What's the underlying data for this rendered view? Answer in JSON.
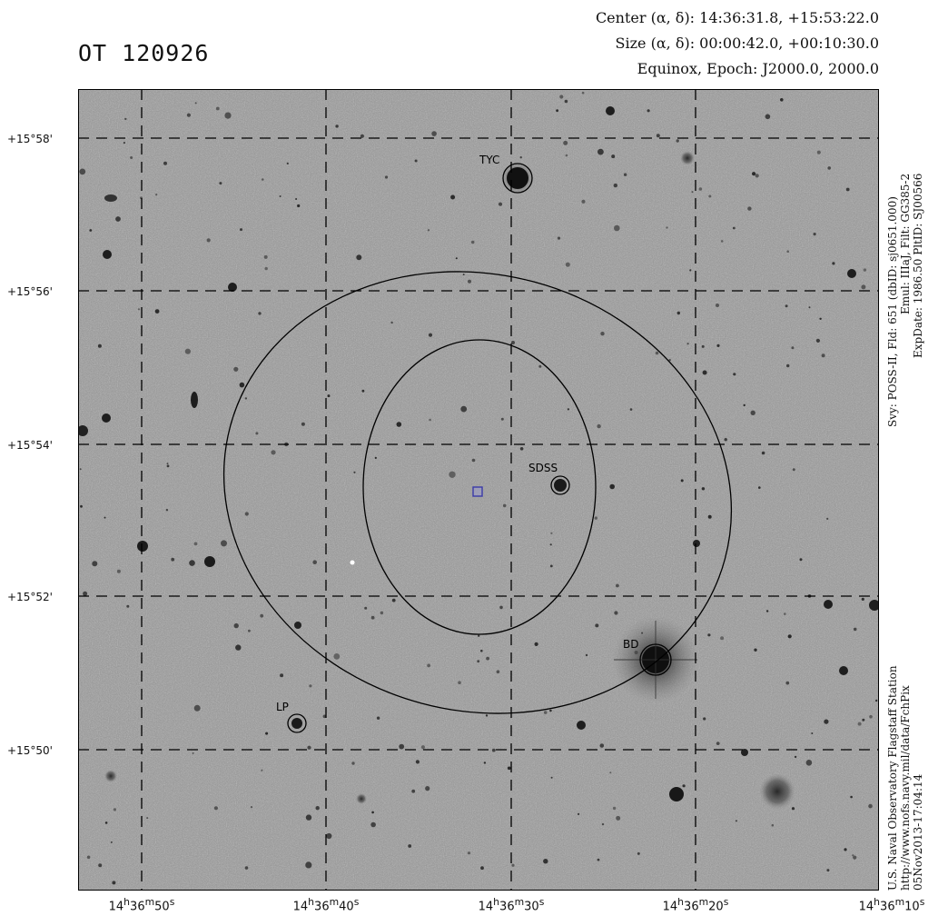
{
  "title": "OT 120926",
  "header": {
    "center_label": "Center (α, δ):",
    "center_value": "14:36:31.8, +15:53:22.0",
    "size_label": "Size (α, δ):",
    "size_value": "00:00:42.0, +00:10:30.0",
    "equinox_label": "Equinox, Epoch:",
    "equinox_value": "J2000.0, 2000.0"
  },
  "y_ticks": [
    "+15°58'",
    "+15°56'",
    "+15°54'",
    "+15°52'",
    "+15°50'"
  ],
  "x_ticks": [
    "14h36m50s",
    "14h36m40s",
    "14h36m30s",
    "14h36m20s",
    "14h36m10s"
  ],
  "x_ticks_display": [
    {
      "h": "14",
      "m": "36",
      "s": "50"
    },
    {
      "h": "14",
      "m": "36",
      "s": "40"
    },
    {
      "h": "14",
      "m": "36",
      "s": "30"
    },
    {
      "h": "14",
      "m": "36",
      "s": "20"
    },
    {
      "h": "14",
      "m": "36",
      "s": "10"
    }
  ],
  "survey_info": {
    "line1": "Svy: POSS-II, Fld: 651 (dbID: sj0651.000)",
    "line2": "Emul: IIIaJ, Filt: GG385-2",
    "line3": "ExpDate: 1986.50 PltID: SJ00566"
  },
  "credit": {
    "line1": "U.S. Naval Observatory Flagstaff Station",
    "line2": "http://www.nofs.navy.mil/data/FchPix",
    "line3": "05Nov2013-17:04:14"
  },
  "labels": {
    "tyc": "TYC",
    "sdss": "SDSS",
    "bd": "BD",
    "lp": "LP"
  },
  "colors": {
    "field_background": "#9a9a9a",
    "star": "#1a1a1a",
    "grid": "#000000",
    "marker": "#3a3aa8"
  }
}
